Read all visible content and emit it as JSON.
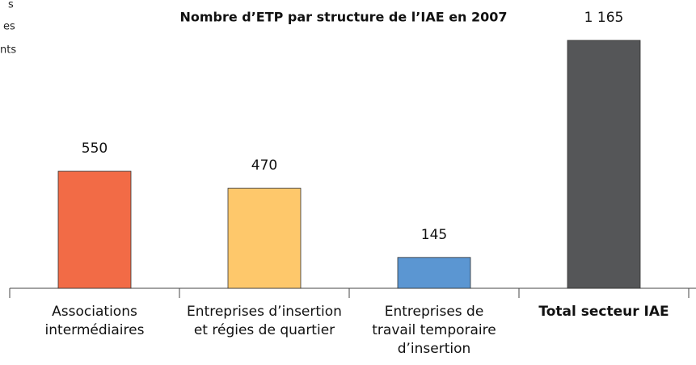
{
  "chart_data": {
    "type": "bar",
    "title": "Nombre d’ETP par structure de l’IAE en 2007",
    "annotations": [
      "s",
      "es",
      "nts"
    ],
    "categories": [
      [
        "Associations",
        "intermédiaires"
      ],
      [
        "Entreprises d’insertion",
        "et régies de quartier"
      ],
      [
        "Entreprises de",
        "travail temporaire",
        "d’insertion"
      ],
      [
        "Total secteur IAE"
      ]
    ],
    "values": [
      550,
      470,
      145,
      1165
    ],
    "value_labels": [
      "550",
      "470",
      "145",
      "1 165"
    ],
    "colors": [
      "#f26b46",
      "#fec86b",
      "#5b96d2",
      "#555658"
    ],
    "bold_categories": [
      3
    ]
  }
}
